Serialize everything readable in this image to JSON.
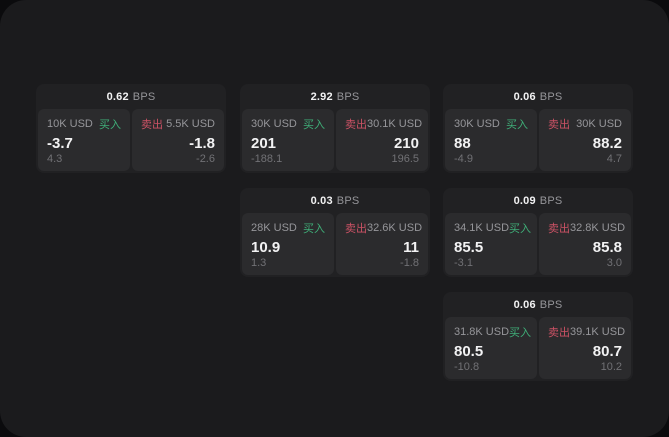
{
  "colors": {
    "outer_bg": "#0b0b0d",
    "panel_bg": "#1b1b1d",
    "card_bg": "#212123",
    "tile_bg": "#2b2b2d",
    "buy_green": "#3fae78",
    "sell_red": "#cc5265",
    "text_primary": "#f2f2f3",
    "text_secondary": "#96969a",
    "text_tertiary": "#717175"
  },
  "labels": {
    "bps_unit": "BPS",
    "buy": "买入",
    "sell": "卖出"
  },
  "cards": [
    {
      "bps": "0.62",
      "buy": {
        "amount": "10K USD",
        "price": "-3.7",
        "delta": "4.3"
      },
      "sell": {
        "amount": "5.5K USD",
        "price": "-1.8",
        "delta": "-2.6"
      }
    },
    {
      "bps": "2.92",
      "buy": {
        "amount": "30K USD",
        "price": "201",
        "delta": "-188.1"
      },
      "sell": {
        "amount": "30.1K USD",
        "price": "210",
        "delta": "196.5"
      }
    },
    {
      "bps": "0.06",
      "buy": {
        "amount": "30K USD",
        "price": "88",
        "delta": "-4.9"
      },
      "sell": {
        "amount": "30K USD",
        "price": "88.2",
        "delta": "4.7"
      }
    },
    {
      "bps": "0.03",
      "buy": {
        "amount": "28K USD",
        "price": "10.9",
        "delta": "1.3"
      },
      "sell": {
        "amount": "32.6K USD",
        "price": "11",
        "delta": "-1.8"
      }
    },
    {
      "bps": "0.09",
      "buy": {
        "amount": "34.1K USD",
        "price": "85.5",
        "delta": "-3.1"
      },
      "sell": {
        "amount": "32.8K USD",
        "price": "85.8",
        "delta": "3.0"
      }
    },
    {
      "bps": "0.06",
      "buy": {
        "amount": "31.8K USD",
        "price": "80.5",
        "delta": "-10.8"
      },
      "sell": {
        "amount": "39.1K USD",
        "price": "80.7",
        "delta": "10.2"
      }
    }
  ]
}
